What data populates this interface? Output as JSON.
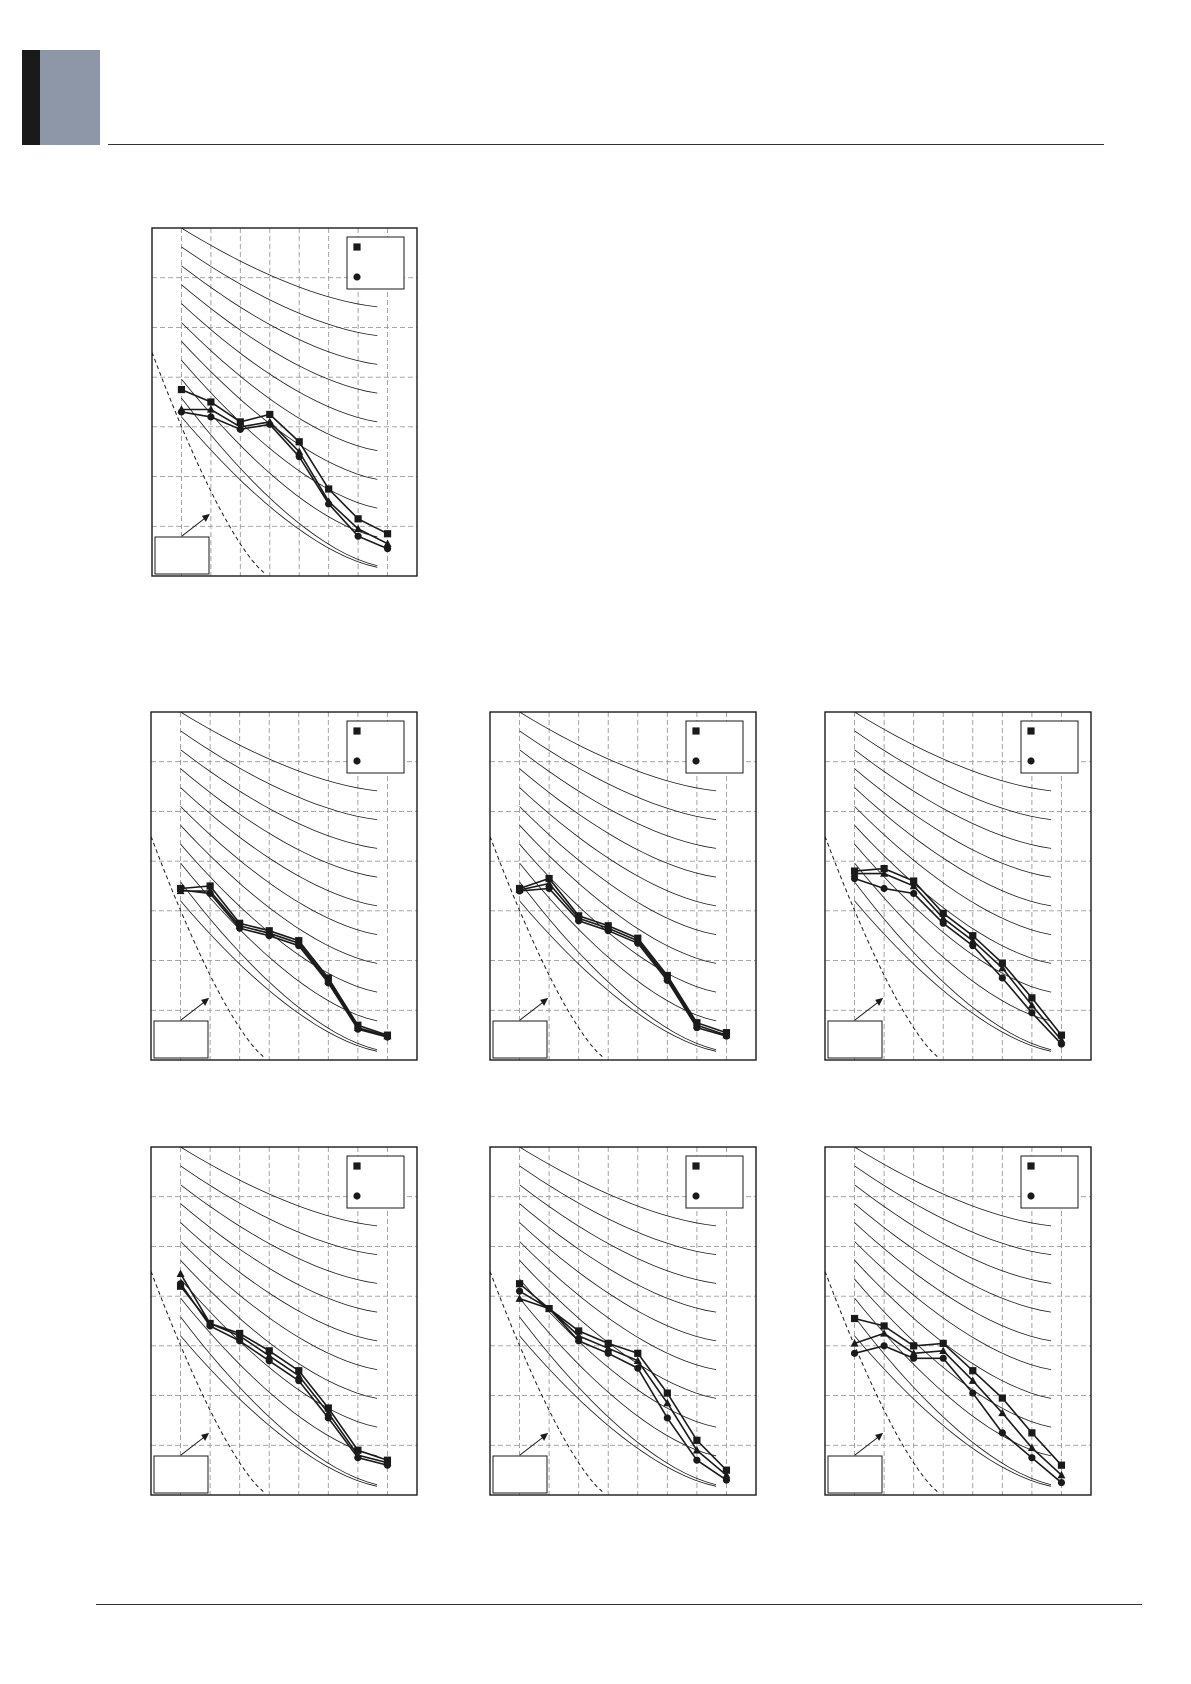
{
  "colors": {
    "ink": "#1a1a1a",
    "grid": "#9a9a9a",
    "tab_dark": "#1a1a1a",
    "tab_gray": "#8e97a8"
  },
  "chart_data": [
    {
      "type": "line",
      "grid": true,
      "legend_placement": "top-right",
      "x": [
        1,
        2,
        3,
        4,
        5,
        6,
        7,
        8
      ],
      "xlim": [
        0,
        9
      ],
      "ylim": [
        0,
        7
      ],
      "reference_curve": "dashed",
      "series": [
        {
          "marker": "square",
          "values": [
            3.75,
            3.5,
            3.1,
            3.25,
            2.7,
            1.75,
            1.15,
            0.85
          ]
        },
        {
          "marker": "triangle",
          "values": [
            3.35,
            3.35,
            3.0,
            3.1,
            2.5,
            1.5,
            0.95,
            0.65
          ]
        },
        {
          "marker": "circle",
          "values": [
            3.3,
            3.2,
            2.95,
            3.05,
            2.4,
            1.45,
            0.8,
            0.55
          ]
        }
      ]
    },
    {
      "type": "line",
      "grid": true,
      "legend_placement": "top-right",
      "x": [
        1,
        2,
        3,
        4,
        5,
        6,
        7,
        8
      ],
      "xlim": [
        0,
        9
      ],
      "ylim": [
        0,
        7
      ],
      "reference_curve": "dashed",
      "series": [
        {
          "marker": "square",
          "values": [
            3.45,
            3.5,
            2.75,
            2.6,
            2.4,
            1.65,
            0.7,
            0.5
          ]
        },
        {
          "marker": "triangle",
          "values": [
            3.4,
            3.4,
            2.7,
            2.55,
            2.35,
            1.6,
            0.65,
            0.48
          ]
        },
        {
          "marker": "circle",
          "values": [
            3.42,
            3.35,
            2.65,
            2.5,
            2.3,
            1.55,
            0.62,
            0.46
          ]
        }
      ]
    },
    {
      "type": "line",
      "grid": true,
      "legend_placement": "top-right",
      "x": [
        1,
        2,
        3,
        4,
        5,
        6,
        7,
        8
      ],
      "xlim": [
        0,
        9
      ],
      "ylim": [
        0,
        7
      ],
      "reference_curve": "dashed",
      "series": [
        {
          "marker": "square",
          "values": [
            3.45,
            3.65,
            2.9,
            2.7,
            2.45,
            1.7,
            0.75,
            0.55
          ]
        },
        {
          "marker": "triangle",
          "values": [
            3.42,
            3.55,
            2.85,
            2.65,
            2.4,
            1.65,
            0.7,
            0.5
          ]
        },
        {
          "marker": "circle",
          "values": [
            3.4,
            3.45,
            2.8,
            2.6,
            2.35,
            1.6,
            0.65,
            0.48
          ]
        }
      ]
    },
    {
      "type": "line",
      "grid": true,
      "legend_placement": "top-right",
      "x": [
        1,
        2,
        3,
        4,
        5,
        6,
        7,
        8
      ],
      "xlim": [
        0,
        9
      ],
      "ylim": [
        0,
        7
      ],
      "reference_curve": "dashed",
      "series": [
        {
          "marker": "square",
          "values": [
            3.8,
            3.85,
            3.6,
            2.95,
            2.5,
            1.95,
            1.25,
            0.5
          ]
        },
        {
          "marker": "triangle",
          "values": [
            3.75,
            3.75,
            3.5,
            2.85,
            2.4,
            1.85,
            1.1,
            0.4
          ]
        },
        {
          "marker": "circle",
          "values": [
            3.65,
            3.45,
            3.35,
            2.75,
            2.3,
            1.65,
            0.95,
            0.32
          ]
        }
      ]
    },
    {
      "type": "line",
      "grid": true,
      "legend_placement": "top-right",
      "x": [
        1,
        2,
        3,
        4,
        5,
        6,
        7,
        8
      ],
      "xlim": [
        0,
        9
      ],
      "ylim": [
        0,
        7
      ],
      "reference_curve": "dashed",
      "series": [
        {
          "marker": "square",
          "values": [
            4.2,
            3.45,
            3.25,
            2.9,
            2.5,
            1.75,
            0.9,
            0.7
          ]
        },
        {
          "marker": "triangle",
          "values": [
            4.45,
            3.45,
            3.2,
            2.8,
            2.4,
            1.65,
            0.8,
            0.65
          ]
        },
        {
          "marker": "circle",
          "values": [
            4.25,
            3.4,
            3.1,
            2.7,
            2.3,
            1.55,
            0.75,
            0.6
          ]
        }
      ]
    },
    {
      "type": "line",
      "grid": true,
      "legend_placement": "top-right",
      "x": [
        1,
        2,
        3,
        4,
        5,
        6,
        7,
        8
      ],
      "xlim": [
        0,
        9
      ],
      "ylim": [
        0,
        7
      ],
      "reference_curve": "dashed",
      "series": [
        {
          "marker": "square",
          "values": [
            4.25,
            3.75,
            3.3,
            3.05,
            2.85,
            2.05,
            1.1,
            0.5
          ]
        },
        {
          "marker": "triangle",
          "values": [
            3.95,
            3.75,
            3.2,
            2.95,
            2.7,
            1.85,
            0.9,
            0.4
          ]
        },
        {
          "marker": "circle",
          "values": [
            4.1,
            3.75,
            3.1,
            2.85,
            2.55,
            1.55,
            0.7,
            0.3
          ]
        }
      ]
    },
    {
      "type": "line",
      "grid": true,
      "legend_placement": "top-right",
      "x": [
        1,
        2,
        3,
        4,
        5,
        6,
        7,
        8
      ],
      "xlim": [
        0,
        9
      ],
      "ylim": [
        0,
        7
      ],
      "reference_curve": "dashed",
      "series": [
        {
          "marker": "square",
          "values": [
            3.55,
            3.4,
            3.0,
            3.05,
            2.5,
            1.95,
            1.25,
            0.6
          ]
        },
        {
          "marker": "triangle",
          "values": [
            3.05,
            3.25,
            2.85,
            2.9,
            2.3,
            1.65,
            0.95,
            0.4
          ]
        },
        {
          "marker": "circle",
          "values": [
            2.85,
            3.0,
            2.75,
            2.75,
            2.05,
            1.25,
            0.75,
            0.25
          ]
        }
      ]
    }
  ]
}
